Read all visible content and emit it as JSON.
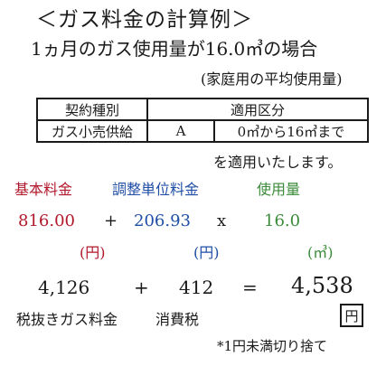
{
  "header": {
    "title": "＜ガス料金の計算例＞",
    "subtitle": "1ヵ月のガス使用量が16.0㎥の場合",
    "note": "(家庭用の平均使用量)"
  },
  "table": {
    "headers": [
      "契約種別",
      "適用区分"
    ],
    "row": [
      "ガス小売供給",
      "A",
      "0㎥から16㎥まで"
    ]
  },
  "apply_text": "を適用いたします。",
  "labels": {
    "basic": "基本料金",
    "unit_price": "調整単位料金",
    "usage": "使用量"
  },
  "values": {
    "basic": "816.00",
    "plus": "+",
    "unit_price": "206.93",
    "times": "x",
    "usage": "16.0"
  },
  "units": {
    "basic": "(円)",
    "unit_price": "(円)",
    "usage": "(㎥)"
  },
  "calc": {
    "a": "4,126",
    "plus": "+",
    "b": "412",
    "eq": "=",
    "total": "4,538"
  },
  "labels2": {
    "a": "税抜きガス料金",
    "b": "消費税"
  },
  "yen_box": "円",
  "footnote": "*1円未満切り捨て",
  "colors": {
    "basic": "#b2182b",
    "unit_price": "#1f4ea6",
    "usage": "#3a8b3a"
  }
}
